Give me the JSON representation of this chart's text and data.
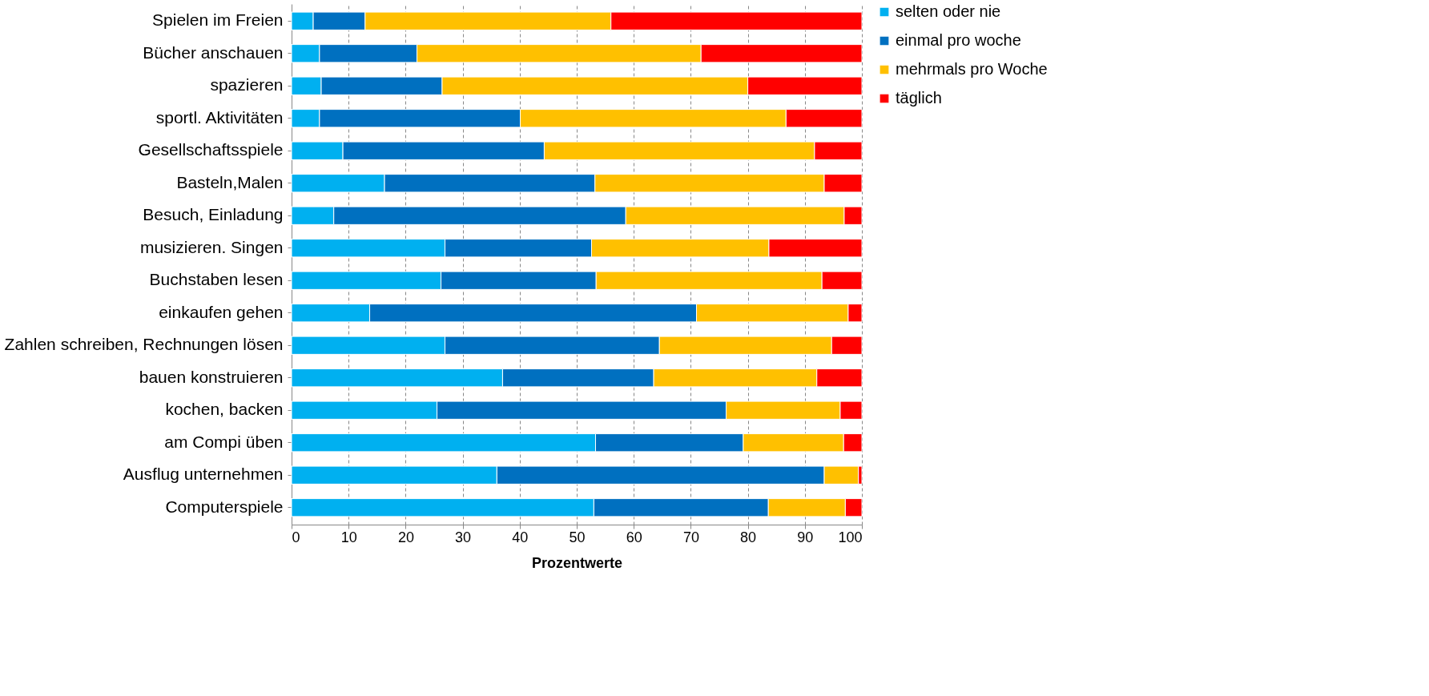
{
  "chart_data": {
    "type": "bar",
    "orientation": "horizontal",
    "stacked": true,
    "xlabel": "Prozentwerte",
    "categories": [
      "Spielen im Freien",
      "Bücher anschauen",
      "spazieren",
      "sportl. Aktivitäten",
      "Gesellschaftsspiele",
      "Basteln,Malen",
      "Besuch, Einladung",
      "musizieren. Singen",
      "Buchstaben lesen",
      "einkaufen gehen",
      "Zahlen schreiben, Rechnungen lösen",
      "bauen konstruieren",
      "kochen, backen",
      "am Compi üben",
      "Ausflug unternehmen",
      "Computerspiele"
    ],
    "series": [
      {
        "name": "selten oder nie",
        "color": "#00b0f0",
        "values": [
          3.8,
          4.9,
          5.2,
          4.9,
          9.0,
          16.3,
          7.4,
          26.9,
          26.2,
          13.7,
          26.9,
          37.0,
          25.5,
          53.3,
          36.0,
          53.0
        ]
      },
      {
        "name": "einmal pro woche",
        "color": "#0070c0",
        "values": [
          9.1,
          17.1,
          21.2,
          35.2,
          35.3,
          36.9,
          51.2,
          25.7,
          27.2,
          57.3,
          37.6,
          26.5,
          50.7,
          25.9,
          57.4,
          30.6
        ]
      },
      {
        "name": "mehrmals pro Woche",
        "color": "#ffc000",
        "values": [
          43.1,
          49.8,
          53.6,
          46.6,
          47.4,
          40.2,
          38.3,
          31.1,
          39.6,
          26.6,
          30.2,
          28.6,
          20.0,
          17.6,
          6.0,
          13.5
        ]
      },
      {
        "name": "täglich",
        "color": "#ff0000",
        "values": [
          44.0,
          28.2,
          20.0,
          13.3,
          8.3,
          6.6,
          3.1,
          16.3,
          7.0,
          2.4,
          5.3,
          7.9,
          3.8,
          3.2,
          0.6,
          2.9
        ]
      }
    ],
    "xlim": [
      0,
      100
    ],
    "xticks": [
      0,
      10,
      20,
      30,
      40,
      50,
      60,
      70,
      80,
      90,
      100
    ],
    "grid": "x",
    "legend": "right"
  }
}
